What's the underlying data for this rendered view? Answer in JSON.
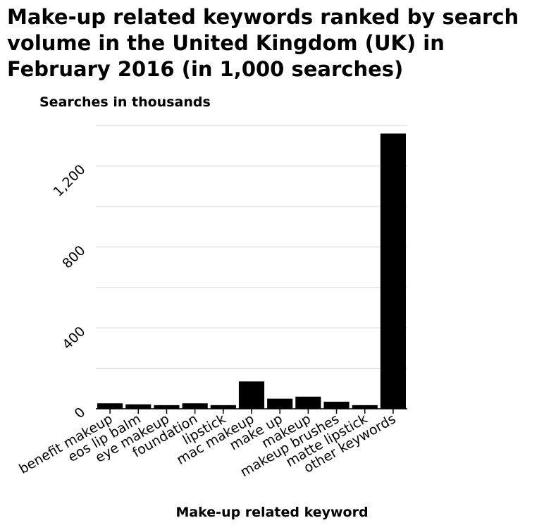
{
  "chart_data": {
    "type": "bar",
    "title": "Make-up related keywords ranked by search volume in the United Kingdom (UK) in February 2016 (in 1,000 searches)",
    "xlabel": "Make-up related keyword",
    "ylabel": "Searches in thousands",
    "categories": [
      "benefit makeup",
      "eos lip balm",
      "eye makeup",
      "foundation",
      "lipstick",
      "mac makeup",
      "make up",
      "makeup",
      "makeup brushes",
      "matte lipstick",
      "other keywords"
    ],
    "values": [
      27,
      22,
      18,
      27,
      18,
      135,
      50,
      60,
      35,
      18,
      1360
    ],
    "ylim": [
      0,
      1400
    ],
    "yticks": [
      0,
      400,
      800,
      1200
    ],
    "ytick_labels": [
      "0",
      "400",
      "800",
      "1,200"
    ],
    "grid": true,
    "bar_color": "#000000"
  }
}
